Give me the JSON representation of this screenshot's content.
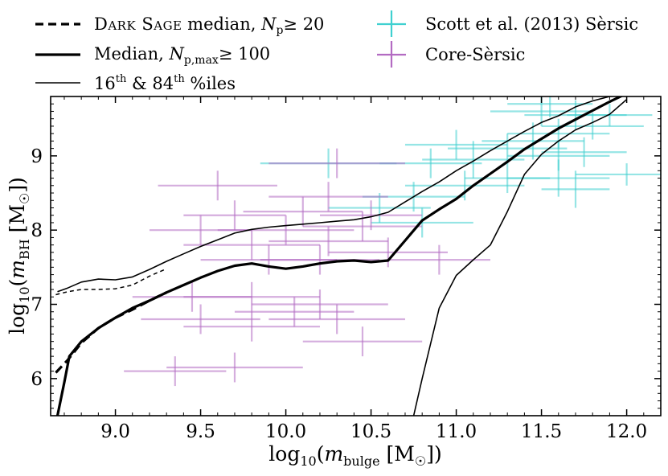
{
  "chart_data": {
    "type": "scatter",
    "xlabel": "log10(m_bulge [M☉])",
    "ylabel": "log10(m_BH [M☉])",
    "xlim": [
      8.62,
      12.2
    ],
    "ylim": [
      5.5,
      9.8
    ],
    "x_ticks": [
      "9.0",
      "9.5",
      "10.0",
      "10.5",
      "11.0",
      "11.5",
      "12.0"
    ],
    "y_ticks": [
      "6",
      "7",
      "8",
      "9"
    ],
    "grid": false,
    "legend_position": "above-plot",
    "legend": {
      "dark_sage": {
        "prefix": "Dark Sage",
        "suffix": " median, ",
        "cond": "≥ 20"
      },
      "median": {
        "prefix": "Median, ",
        "cond": "≥ 100"
      },
      "percentiles": {
        "a": "16",
        "a_sup": "th",
        "mid": " & 84",
        "b_sup": "th",
        "tail": " %iles"
      },
      "scott": "Scott et al. (2013) Sèrsic",
      "core": "Core-Sèrsic"
    },
    "colors": {
      "sersic": "#3fd0d0",
      "core_sersic": "#b36bc2",
      "line": "#000000"
    },
    "lines": [
      {
        "name": "Dark Sage median, Np ≥ 20",
        "style": "dashed",
        "width": 3.2,
        "points": [
          [
            8.65,
            6.08
          ],
          [
            8.72,
            6.25
          ],
          [
            8.8,
            6.48
          ],
          [
            8.9,
            6.68
          ],
          [
            9.0,
            6.82
          ],
          [
            9.1,
            6.93
          ],
          [
            9.2,
            7.05
          ],
          [
            9.3,
            7.16
          ]
        ]
      },
      {
        "name": "Dark Sage 84th %ile",
        "style": "dashed",
        "width": 1.5,
        "points": [
          [
            8.65,
            7.13
          ],
          [
            8.72,
            7.17
          ],
          [
            8.8,
            7.2
          ],
          [
            8.9,
            7.2
          ],
          [
            9.0,
            7.21
          ],
          [
            9.1,
            7.26
          ],
          [
            9.2,
            7.38
          ],
          [
            9.3,
            7.48
          ]
        ]
      },
      {
        "name": "Median, Np,max ≥ 100",
        "style": "solid",
        "width": 3.2,
        "points": [
          [
            8.66,
            5.5
          ],
          [
            8.7,
            5.95
          ],
          [
            8.73,
            6.3
          ],
          [
            8.8,
            6.5
          ],
          [
            8.9,
            6.68
          ],
          [
            9.0,
            6.82
          ],
          [
            9.1,
            6.95
          ],
          [
            9.2,
            7.05
          ],
          [
            9.3,
            7.16
          ],
          [
            9.4,
            7.26
          ],
          [
            9.5,
            7.36
          ],
          [
            9.6,
            7.45
          ],
          [
            9.7,
            7.52
          ],
          [
            9.8,
            7.55
          ],
          [
            9.9,
            7.51
          ],
          [
            10.0,
            7.48
          ],
          [
            10.1,
            7.51
          ],
          [
            10.2,
            7.55
          ],
          [
            10.3,
            7.58
          ],
          [
            10.4,
            7.59
          ],
          [
            10.5,
            7.57
          ],
          [
            10.6,
            7.59
          ],
          [
            10.7,
            7.86
          ],
          [
            10.8,
            8.13
          ],
          [
            10.9,
            8.28
          ],
          [
            11.0,
            8.42
          ],
          [
            11.1,
            8.6
          ],
          [
            11.2,
            8.76
          ],
          [
            11.3,
            8.92
          ],
          [
            11.4,
            9.09
          ],
          [
            11.5,
            9.23
          ],
          [
            11.6,
            9.37
          ],
          [
            11.7,
            9.49
          ],
          [
            11.8,
            9.61
          ],
          [
            11.9,
            9.73
          ],
          [
            12.0,
            9.84
          ]
        ]
      },
      {
        "name": "84th %ile",
        "style": "solid",
        "width": 1.6,
        "points": [
          [
            8.66,
            7.17
          ],
          [
            8.72,
            7.22
          ],
          [
            8.8,
            7.3
          ],
          [
            8.9,
            7.34
          ],
          [
            9.0,
            7.33
          ],
          [
            9.1,
            7.37
          ],
          [
            9.2,
            7.47
          ],
          [
            9.3,
            7.58
          ],
          [
            9.4,
            7.68
          ],
          [
            9.5,
            7.78
          ],
          [
            9.6,
            7.87
          ],
          [
            9.7,
            7.96
          ],
          [
            9.8,
            8.01
          ],
          [
            9.9,
            8.04
          ],
          [
            10.0,
            8.06
          ],
          [
            10.1,
            8.08
          ],
          [
            10.2,
            8.1
          ],
          [
            10.3,
            8.12
          ],
          [
            10.4,
            8.14
          ],
          [
            10.5,
            8.18
          ],
          [
            10.6,
            8.24
          ],
          [
            10.7,
            8.38
          ],
          [
            10.8,
            8.52
          ],
          [
            10.9,
            8.65
          ],
          [
            11.0,
            8.8
          ],
          [
            11.1,
            8.93
          ],
          [
            11.2,
            9.07
          ],
          [
            11.3,
            9.2
          ],
          [
            11.4,
            9.33
          ],
          [
            11.5,
            9.45
          ],
          [
            11.6,
            9.54
          ],
          [
            11.7,
            9.66
          ],
          [
            11.8,
            9.74
          ],
          [
            11.9,
            9.8
          ],
          [
            12.05,
            9.82
          ]
        ]
      },
      {
        "name": "16th %ile",
        "style": "solid",
        "width": 1.6,
        "points": [
          [
            10.75,
            5.5
          ],
          [
            10.8,
            6.0
          ],
          [
            10.9,
            6.95
          ],
          [
            11.0,
            7.39
          ],
          [
            11.1,
            7.6
          ],
          [
            11.2,
            7.8
          ],
          [
            11.3,
            8.25
          ],
          [
            11.4,
            8.75
          ],
          [
            11.5,
            9.02
          ],
          [
            11.6,
            9.2
          ],
          [
            11.7,
            9.35
          ],
          [
            11.8,
            9.45
          ],
          [
            11.9,
            9.56
          ],
          [
            12.0,
            9.76
          ]
        ]
      }
    ],
    "series": [
      {
        "name": "Scott et al. (2013) Sèrsic",
        "color": "#3fd0d0",
        "points": [
          [
            11.55,
            9.7,
            0.25,
            0.18
          ],
          [
            11.5,
            9.6,
            0.3,
            0.2
          ],
          [
            11.7,
            9.55,
            0.3,
            0.2
          ],
          [
            11.9,
            9.55,
            0.25,
            0.15
          ],
          [
            11.6,
            9.3,
            0.3,
            0.2
          ],
          [
            11.8,
            9.4,
            0.3,
            0.18
          ],
          [
            11.45,
            9.2,
            0.3,
            0.25
          ],
          [
            11.6,
            9.0,
            0.3,
            0.2
          ],
          [
            11.75,
            9.05,
            0.25,
            0.2
          ],
          [
            11.0,
            9.15,
            0.3,
            0.2
          ],
          [
            11.3,
            9.1,
            0.35,
            0.2
          ],
          [
            10.85,
            8.9,
            0.3,
            0.2
          ],
          [
            11.1,
            8.95,
            0.3,
            0.25
          ],
          [
            11.3,
            8.7,
            0.25,
            0.2
          ],
          [
            11.6,
            8.7,
            0.3,
            0.25
          ],
          [
            11.7,
            8.55,
            0.2,
            0.25
          ],
          [
            12.0,
            8.75,
            0.3,
            0.15
          ],
          [
            10.55,
            8.3,
            0.3,
            0.2
          ],
          [
            10.75,
            8.45,
            0.3,
            0.2
          ],
          [
            10.8,
            8.1,
            0.3,
            0.2
          ],
          [
            11.05,
            8.6,
            0.35,
            0.2
          ],
          [
            10.25,
            8.9,
            0.4,
            0.2
          ]
        ]
      },
      {
        "name": "Core-Sèrsic",
        "color": "#b36bc2",
        "points": [
          [
            9.6,
            8.6,
            0.35,
            0.2
          ],
          [
            10.3,
            8.9,
            0.4,
            0.2
          ],
          [
            10.25,
            8.45,
            0.35,
            0.2
          ],
          [
            9.7,
            8.2,
            0.3,
            0.2
          ],
          [
            10.1,
            8.25,
            0.35,
            0.2
          ],
          [
            10.5,
            8.2,
            0.3,
            0.2
          ],
          [
            9.5,
            8.0,
            0.3,
            0.2
          ],
          [
            10.0,
            8.0,
            0.4,
            0.2
          ],
          [
            10.45,
            8.05,
            0.35,
            0.2
          ],
          [
            9.8,
            7.8,
            0.4,
            0.2
          ],
          [
            10.25,
            7.85,
            0.35,
            0.2
          ],
          [
            10.6,
            7.7,
            0.35,
            0.2
          ],
          [
            9.9,
            7.6,
            0.4,
            0.2
          ],
          [
            10.2,
            7.6,
            0.35,
            0.2
          ],
          [
            10.9,
            7.6,
            0.3,
            0.2
          ],
          [
            9.45,
            7.1,
            0.35,
            0.2
          ],
          [
            9.8,
            7.1,
            0.4,
            0.2
          ],
          [
            10.2,
            7.0,
            0.4,
            0.2
          ],
          [
            9.5,
            6.8,
            0.35,
            0.2
          ],
          [
            9.8,
            6.7,
            0.4,
            0.2
          ],
          [
            10.3,
            6.8,
            0.4,
            0.2
          ],
          [
            10.45,
            6.5,
            0.35,
            0.2
          ],
          [
            9.7,
            6.15,
            0.4,
            0.2
          ],
          [
            9.35,
            6.1,
            0.3,
            0.2
          ],
          [
            10.05,
            6.9,
            0.35,
            0.2
          ]
        ]
      }
    ]
  }
}
